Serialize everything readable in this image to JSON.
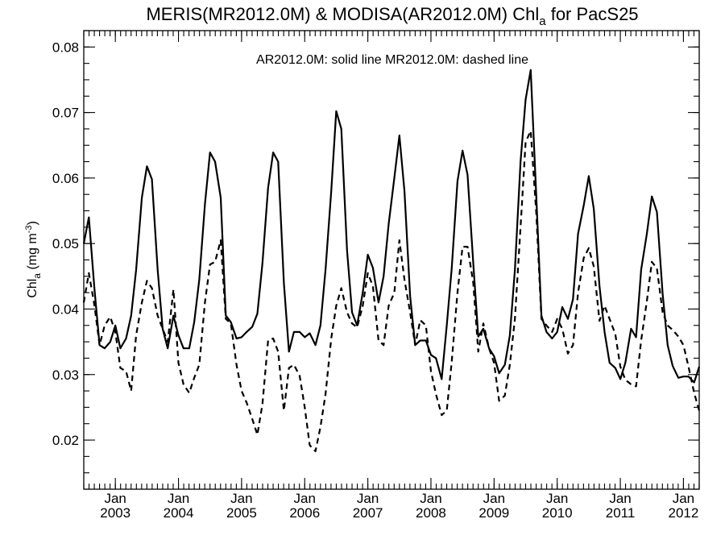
{
  "chart_data": {
    "type": "line",
    "title": {
      "prefix": "MERIS(MR2012.0M) & MODISA(AR2012.0M)  Chl",
      "subscript": "a",
      "suffix": " for PacS25"
    },
    "annotation": "AR2012.0M: solid line   MR2012.0M: dashed line",
    "ylabel": {
      "main": "Chl",
      "sub": "a",
      "unit_open": " (mg m",
      "sup": "-3",
      "unit_close": ")"
    },
    "xlim": [
      2002.5,
      2012.25
    ],
    "ylim": [
      0.0125,
      0.0825
    ],
    "yticks": [
      {
        "value": 0.02,
        "label": "0.02"
      },
      {
        "value": 0.03,
        "label": "0.03"
      },
      {
        "value": 0.04,
        "label": "0.04"
      },
      {
        "value": 0.05,
        "label": "0.05"
      },
      {
        "value": 0.06,
        "label": "0.06"
      },
      {
        "value": 0.07,
        "label": "0.07"
      },
      {
        "value": 0.08,
        "label": "0.08"
      }
    ],
    "xticks": [
      {
        "value": 2003,
        "month": "Jan",
        "year": "2003"
      },
      {
        "value": 2004,
        "month": "Jan",
        "year": "2004"
      },
      {
        "value": 2005,
        "month": "Jan",
        "year": "2005"
      },
      {
        "value": 2006,
        "month": "Jan",
        "year": "2006"
      },
      {
        "value": 2007,
        "month": "Jan",
        "year": "2007"
      },
      {
        "value": 2008,
        "month": "Jan",
        "year": "2008"
      },
      {
        "value": 2009,
        "month": "Jan",
        "year": "2009"
      },
      {
        "value": 2010,
        "month": "Jan",
        "year": "2010"
      },
      {
        "value": 2011,
        "month": "Jan",
        "year": "2011"
      },
      {
        "value": 2012,
        "month": "Jan",
        "year": "2012"
      }
    ],
    "series": [
      {
        "name": "AR2012.0M",
        "style": "solid",
        "x": [
          2002.5,
          2002.58,
          2002.67,
          2002.75,
          2002.83,
          2002.92,
          2003.0,
          2003.08,
          2003.17,
          2003.25,
          2003.33,
          2003.42,
          2003.5,
          2003.58,
          2003.67,
          2003.75,
          2003.83,
          2003.92,
          2004.0,
          2004.08,
          2004.17,
          2004.25,
          2004.33,
          2004.42,
          2004.5,
          2004.58,
          2004.67,
          2004.75,
          2004.83,
          2004.92,
          2005.0,
          2005.08,
          2005.17,
          2005.25,
          2005.33,
          2005.42,
          2005.5,
          2005.58,
          2005.67,
          2005.75,
          2005.83,
          2005.92,
          2006.0,
          2006.08,
          2006.17,
          2006.25,
          2006.33,
          2006.42,
          2006.5,
          2006.58,
          2006.67,
          2006.75,
          2006.83,
          2006.92,
          2007.0,
          2007.08,
          2007.17,
          2007.25,
          2007.33,
          2007.42,
          2007.5,
          2007.58,
          2007.67,
          2007.75,
          2007.83,
          2007.92,
          2008.0,
          2008.08,
          2008.17,
          2008.25,
          2008.33,
          2008.42,
          2008.5,
          2008.58,
          2008.67,
          2008.75,
          2008.83,
          2008.92,
          2009.0,
          2009.08,
          2009.17,
          2009.25,
          2009.33,
          2009.42,
          2009.5,
          2009.58,
          2009.67,
          2009.75,
          2009.83,
          2009.92,
          2010.0,
          2010.08,
          2010.17,
          2010.25,
          2010.33,
          2010.42,
          2010.5,
          2010.58,
          2010.67,
          2010.75,
          2010.83,
          2010.92,
          2011.0,
          2011.08,
          2011.17,
          2011.25,
          2011.33,
          2011.42,
          2011.5,
          2011.58,
          2011.67,
          2011.75,
          2011.83,
          2011.92,
          2012.0,
          2012.08,
          2012.17,
          2012.25
        ],
        "values": [
          0.05,
          0.054,
          0.043,
          0.0345,
          0.034,
          0.035,
          0.0375,
          0.034,
          0.0355,
          0.039,
          0.046,
          0.057,
          0.0618,
          0.0598,
          0.046,
          0.037,
          0.034,
          0.039,
          0.036,
          0.034,
          0.034,
          0.038,
          0.0445,
          0.056,
          0.0639,
          0.0625,
          0.057,
          0.039,
          0.038,
          0.0355,
          0.0357,
          0.0365,
          0.0373,
          0.0393,
          0.047,
          0.0585,
          0.0639,
          0.0625,
          0.044,
          0.0335,
          0.0365,
          0.0365,
          0.0357,
          0.0363,
          0.0345,
          0.0375,
          0.046,
          0.058,
          0.0702,
          0.0675,
          0.049,
          0.0395,
          0.0375,
          0.0425,
          0.0483,
          0.0463,
          0.041,
          0.045,
          0.053,
          0.06,
          0.0665,
          0.058,
          0.042,
          0.0345,
          0.0352,
          0.0352,
          0.033,
          0.0325,
          0.0293,
          0.0375,
          0.0463,
          0.0595,
          0.0642,
          0.0605,
          0.047,
          0.0358,
          0.037,
          0.034,
          0.0328,
          0.0302,
          0.0315,
          0.036,
          0.046,
          0.0625,
          0.072,
          0.0765,
          0.057,
          0.039,
          0.0365,
          0.0355,
          0.0365,
          0.0403,
          0.0385,
          0.0415,
          0.0515,
          0.0558,
          0.0603,
          0.0553,
          0.0435,
          0.0365,
          0.0318,
          0.031,
          0.0293,
          0.0318,
          0.037,
          0.0357,
          0.046,
          0.0515,
          0.0572,
          0.0548,
          0.0423,
          0.0345,
          0.0313,
          0.0295,
          0.0297,
          0.0297,
          0.0288,
          0.0312
        ]
      },
      {
        "name": "MR2012.0M",
        "style": "dashed",
        "x": [
          2002.5,
          2002.58,
          2002.67,
          2002.75,
          2002.83,
          2002.92,
          2003.0,
          2003.08,
          2003.17,
          2003.25,
          2003.33,
          2003.42,
          2003.5,
          2003.58,
          2003.67,
          2003.75,
          2003.83,
          2003.92,
          2004.0,
          2004.08,
          2004.17,
          2004.25,
          2004.33,
          2004.42,
          2004.5,
          2004.58,
          2004.67,
          2004.75,
          2004.83,
          2004.92,
          2005.0,
          2005.08,
          2005.17,
          2005.25,
          2005.33,
          2005.42,
          2005.5,
          2005.58,
          2005.67,
          2005.75,
          2005.83,
          2005.92,
          2006.0,
          2006.08,
          2006.17,
          2006.25,
          2006.33,
          2006.42,
          2006.5,
          2006.58,
          2006.67,
          2006.75,
          2006.83,
          2006.92,
          2007.0,
          2007.08,
          2007.17,
          2007.25,
          2007.33,
          2007.42,
          2007.5,
          2007.58,
          2007.67,
          2007.75,
          2007.83,
          2007.92,
          2008.0,
          2008.08,
          2008.17,
          2008.25,
          2008.33,
          2008.42,
          2008.5,
          2008.58,
          2008.67,
          2008.75,
          2008.83,
          2008.92,
          2009.0,
          2009.08,
          2009.17,
          2009.25,
          2009.33,
          2009.42,
          2009.5,
          2009.58,
          2009.67,
          2009.75,
          2009.83,
          2009.92,
          2010.0,
          2010.08,
          2010.17,
          2010.25,
          2010.33,
          2010.42,
          2010.5,
          2010.58,
          2010.67,
          2010.75,
          2010.83,
          2010.92,
          2011.0,
          2011.08,
          2011.17,
          2011.25,
          2011.33,
          2011.42,
          2011.5,
          2011.58,
          2011.67,
          2011.75,
          2011.83,
          2011.92,
          2012.0,
          2012.08,
          2012.17,
          2012.25
        ],
        "values": [
          0.041,
          0.0455,
          0.0405,
          0.0345,
          0.0375,
          0.0388,
          0.0365,
          0.031,
          0.0305,
          0.0275,
          0.036,
          0.041,
          0.0443,
          0.0432,
          0.039,
          0.037,
          0.035,
          0.043,
          0.0318,
          0.0285,
          0.0272,
          0.0295,
          0.0315,
          0.041,
          0.0468,
          0.0472,
          0.0505,
          0.0385,
          0.0378,
          0.0315,
          0.0275,
          0.0257,
          0.0232,
          0.0208,
          0.0255,
          0.0352,
          0.0355,
          0.0335,
          0.0245,
          0.031,
          0.0315,
          0.0298,
          0.025,
          0.0192,
          0.0183,
          0.022,
          0.027,
          0.0355,
          0.0405,
          0.0432,
          0.0395,
          0.0378,
          0.0372,
          0.0405,
          0.0455,
          0.0435,
          0.0352,
          0.0345,
          0.0405,
          0.0425,
          0.0505,
          0.0445,
          0.0395,
          0.0345,
          0.0383,
          0.0375,
          0.0305,
          0.027,
          0.0238,
          0.0245,
          0.032,
          0.0425,
          0.0495,
          0.0495,
          0.044,
          0.0335,
          0.0378,
          0.034,
          0.0318,
          0.026,
          0.0268,
          0.0315,
          0.0385,
          0.0525,
          0.0655,
          0.0672,
          0.0545,
          0.0385,
          0.0375,
          0.0365,
          0.0385,
          0.037,
          0.0332,
          0.0345,
          0.0425,
          0.0478,
          0.0493,
          0.0465,
          0.0382,
          0.0405,
          0.0385,
          0.0362,
          0.0312,
          0.0292,
          0.0285,
          0.0282,
          0.0352,
          0.0412,
          0.0472,
          0.0462,
          0.0395,
          0.0375,
          0.0368,
          0.0358,
          0.0345,
          0.0312,
          0.0272,
          0.0245
        ]
      }
    ]
  }
}
